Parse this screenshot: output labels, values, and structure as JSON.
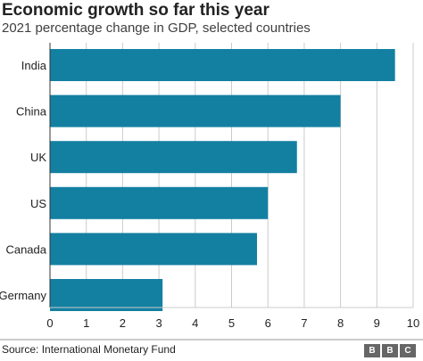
{
  "chart_data": {
    "type": "bar",
    "orientation": "horizontal",
    "title": "Economic growth so far this year",
    "subtitle": "2021 percentage change in GDP, selected countries",
    "categories": [
      "India",
      "China",
      "UK",
      "US",
      "Canada",
      "Germany"
    ],
    "values": [
      9.5,
      8.0,
      6.8,
      6.0,
      5.7,
      3.1
    ],
    "xlim": [
      0,
      10
    ],
    "xticks": [
      "0",
      "1",
      "2",
      "3",
      "4",
      "5",
      "6",
      "7",
      "8",
      "9",
      "10"
    ],
    "xlabel": "",
    "ylabel": "",
    "grid": "vertical",
    "bar_color": "#1380a1",
    "grid_color": "#cbcbcb",
    "source": "Source: International Monetary Fund"
  },
  "branding": {
    "logo_letters": [
      "B",
      "B",
      "C"
    ],
    "logo_color": "#666666"
  }
}
